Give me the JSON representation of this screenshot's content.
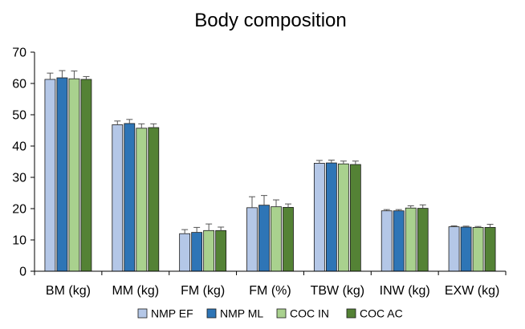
{
  "chart_data": {
    "type": "bar",
    "title": "Body composition",
    "xlabel": "",
    "ylabel": "",
    "ylim": [
      0,
      70
    ],
    "yticks": [
      0,
      10,
      20,
      30,
      40,
      50,
      60,
      70
    ],
    "grid": false,
    "legend_position": "bottom",
    "categories": [
      "BM (kg)",
      "MM (kg)",
      "FM (kg)",
      "FM (%)",
      "TBW (kg)",
      "INW (kg)",
      "EXW (kg)"
    ],
    "series": [
      {
        "name": "NMP EF",
        "color": "#b4c7e7",
        "values": [
          61.3,
          46.8,
          12.0,
          20.3,
          34.5,
          19.3,
          14.2
        ],
        "errors": [
          2.0,
          1.2,
          1.3,
          3.5,
          0.9,
          0.4,
          0.3
        ]
      },
      {
        "name": "NMP ML",
        "color": "#2e75b6",
        "values": [
          61.8,
          47.2,
          12.4,
          21.1,
          34.6,
          19.3,
          14.1
        ],
        "errors": [
          2.3,
          1.3,
          1.6,
          3.1,
          0.9,
          0.4,
          0.3
        ]
      },
      {
        "name": "COC IN",
        "color": "#a9d18e",
        "values": [
          61.5,
          45.7,
          13.0,
          20.6,
          34.3,
          20.2,
          14.0
        ],
        "errors": [
          2.5,
          1.4,
          2.1,
          2.2,
          0.9,
          0.7,
          0.3
        ]
      },
      {
        "name": "COC AC",
        "color": "#548235",
        "values": [
          61.3,
          45.9,
          13.0,
          20.4,
          34.1,
          20.1,
          14.0
        ],
        "errors": [
          0.9,
          1.2,
          1.1,
          1.1,
          1.1,
          1.1,
          1.0
        ]
      }
    ]
  }
}
